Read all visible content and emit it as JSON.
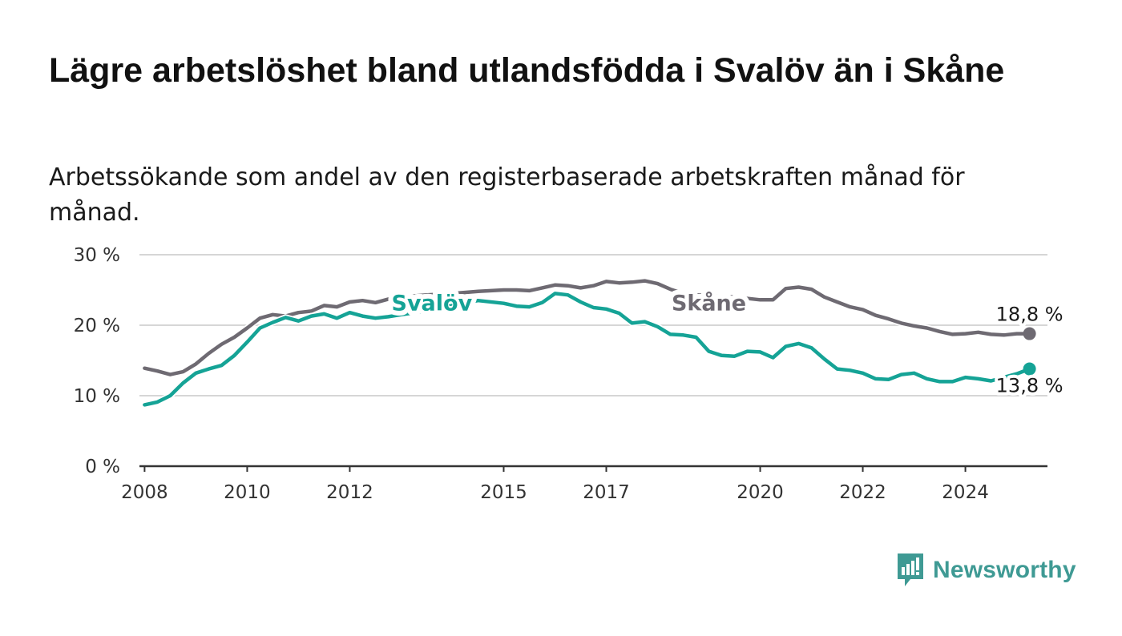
{
  "title": "Lägre arbetslöshet bland utlandsfödda i Svalöv än i Skåne",
  "subtitle": "Arbetssökande som andel av den registerbaserade arbetskraften månad för månad.",
  "brand": {
    "name": "Newsworthy",
    "icon": "newsworthy-logo-icon",
    "color": "#3f9a94"
  },
  "chart_data": {
    "type": "line",
    "y_ticks": [
      0,
      10,
      20,
      30
    ],
    "y_tick_labels": [
      "0 %",
      "10 %",
      "20 %",
      "30 %"
    ],
    "x_ticks": [
      2008,
      2010,
      2012,
      2015,
      2017,
      2020,
      2022,
      2024
    ],
    "x_tick_labels": [
      "2008",
      "2010",
      "2012",
      "2015",
      "2017",
      "2020",
      "2022",
      "2024"
    ],
    "xlim": [
      2007.9,
      2025.6
    ],
    "ylim": [
      0,
      30
    ],
    "grid": true,
    "series": [
      {
        "name": "Skåne",
        "color": "#6e6a72",
        "end_label": "18,8 %",
        "points": [
          [
            2008.0,
            13.9
          ],
          [
            2008.25,
            13.5
          ],
          [
            2008.5,
            13.0
          ],
          [
            2008.75,
            13.4
          ],
          [
            2009.0,
            14.5
          ],
          [
            2009.25,
            16.0
          ],
          [
            2009.5,
            17.3
          ],
          [
            2009.75,
            18.3
          ],
          [
            2010.0,
            19.6
          ],
          [
            2010.25,
            21.0
          ],
          [
            2010.5,
            21.5
          ],
          [
            2010.75,
            21.3
          ],
          [
            2011.0,
            21.8
          ],
          [
            2011.25,
            22.0
          ],
          [
            2011.5,
            22.8
          ],
          [
            2011.75,
            22.6
          ],
          [
            2012.0,
            23.3
          ],
          [
            2012.25,
            23.5
          ],
          [
            2012.5,
            23.2
          ],
          [
            2012.75,
            23.7
          ],
          [
            2013.0,
            24.0
          ],
          [
            2013.5,
            24.3
          ],
          [
            2014.0,
            24.5
          ],
          [
            2014.5,
            24.8
          ],
          [
            2015.0,
            25.0
          ],
          [
            2015.25,
            25.0
          ],
          [
            2015.5,
            24.9
          ],
          [
            2015.75,
            25.3
          ],
          [
            2016.0,
            25.7
          ],
          [
            2016.25,
            25.6
          ],
          [
            2016.5,
            25.3
          ],
          [
            2016.75,
            25.6
          ],
          [
            2017.0,
            26.2
          ],
          [
            2017.25,
            26.0
          ],
          [
            2017.5,
            26.1
          ],
          [
            2017.75,
            26.3
          ],
          [
            2018.0,
            25.9
          ],
          [
            2018.25,
            25.1
          ],
          [
            2018.5,
            24.5
          ],
          [
            2018.75,
            24.3
          ],
          [
            2019.0,
            24.2
          ],
          [
            2019.5,
            24.0
          ],
          [
            2020.0,
            23.6
          ],
          [
            2020.25,
            23.6
          ],
          [
            2020.5,
            25.2
          ],
          [
            2020.75,
            25.4
          ],
          [
            2021.0,
            25.1
          ],
          [
            2021.25,
            24.0
          ],
          [
            2021.5,
            23.3
          ],
          [
            2021.75,
            22.6
          ],
          [
            2022.0,
            22.2
          ],
          [
            2022.25,
            21.4
          ],
          [
            2022.5,
            20.9
          ],
          [
            2022.75,
            20.3
          ],
          [
            2023.0,
            19.9
          ],
          [
            2023.25,
            19.6
          ],
          [
            2023.5,
            19.1
          ],
          [
            2023.75,
            18.7
          ],
          [
            2024.0,
            18.8
          ],
          [
            2024.25,
            19.0
          ],
          [
            2024.5,
            18.7
          ],
          [
            2024.75,
            18.6
          ],
          [
            2025.0,
            18.8
          ],
          [
            2025.25,
            18.8
          ]
        ]
      },
      {
        "name": "Svalöv",
        "color": "#15a396",
        "end_label": "13,8 %",
        "points": [
          [
            2008.0,
            8.7
          ],
          [
            2008.25,
            9.1
          ],
          [
            2008.5,
            10.0
          ],
          [
            2008.75,
            11.8
          ],
          [
            2009.0,
            13.2
          ],
          [
            2009.25,
            13.8
          ],
          [
            2009.5,
            14.3
          ],
          [
            2009.75,
            15.7
          ],
          [
            2010.0,
            17.6
          ],
          [
            2010.25,
            19.6
          ],
          [
            2010.5,
            20.4
          ],
          [
            2010.75,
            21.1
          ],
          [
            2011.0,
            20.6
          ],
          [
            2011.25,
            21.3
          ],
          [
            2011.5,
            21.6
          ],
          [
            2011.75,
            21.0
          ],
          [
            2012.0,
            21.8
          ],
          [
            2012.25,
            21.3
          ],
          [
            2012.5,
            21.0
          ],
          [
            2012.75,
            21.2
          ],
          [
            2013.0,
            21.5
          ],
          [
            2013.5,
            22.0
          ],
          [
            2014.0,
            22.8
          ],
          [
            2014.5,
            23.5
          ],
          [
            2015.0,
            23.1
          ],
          [
            2015.25,
            22.7
          ],
          [
            2015.5,
            22.6
          ],
          [
            2015.75,
            23.2
          ],
          [
            2016.0,
            24.5
          ],
          [
            2016.25,
            24.3
          ],
          [
            2016.5,
            23.3
          ],
          [
            2016.75,
            22.5
          ],
          [
            2017.0,
            22.3
          ],
          [
            2017.25,
            21.7
          ],
          [
            2017.5,
            20.3
          ],
          [
            2017.75,
            20.5
          ],
          [
            2018.0,
            19.8
          ],
          [
            2018.25,
            18.7
          ],
          [
            2018.5,
            18.6
          ],
          [
            2018.75,
            18.3
          ],
          [
            2019.0,
            16.3
          ],
          [
            2019.25,
            15.7
          ],
          [
            2019.5,
            15.6
          ],
          [
            2019.75,
            16.3
          ],
          [
            2020.0,
            16.2
          ],
          [
            2020.25,
            15.4
          ],
          [
            2020.5,
            17.0
          ],
          [
            2020.75,
            17.4
          ],
          [
            2021.0,
            16.8
          ],
          [
            2021.25,
            15.2
          ],
          [
            2021.5,
            13.8
          ],
          [
            2021.75,
            13.6
          ],
          [
            2022.0,
            13.2
          ],
          [
            2022.25,
            12.4
          ],
          [
            2022.5,
            12.3
          ],
          [
            2022.75,
            13.0
          ],
          [
            2023.0,
            13.2
          ],
          [
            2023.25,
            12.4
          ],
          [
            2023.5,
            12.0
          ],
          [
            2023.75,
            12.0
          ],
          [
            2024.0,
            12.6
          ],
          [
            2024.25,
            12.4
          ],
          [
            2024.5,
            12.1
          ],
          [
            2024.75,
            12.6
          ],
          [
            2025.0,
            13.1
          ],
          [
            2025.25,
            13.8
          ]
        ]
      }
    ]
  }
}
